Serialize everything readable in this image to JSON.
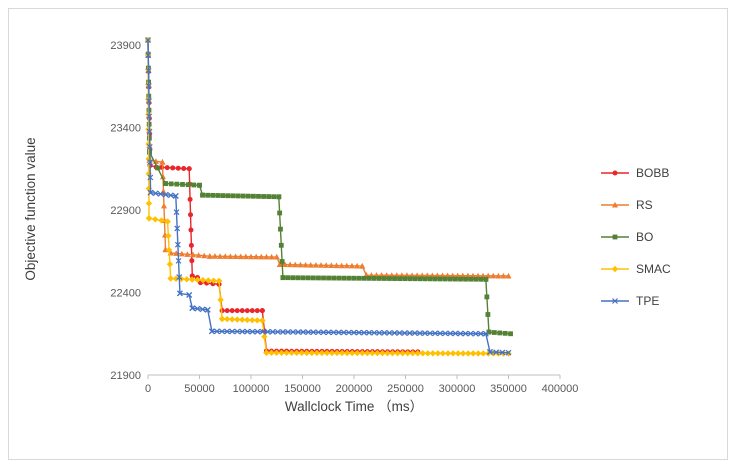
{
  "chart_data": {
    "type": "line",
    "title": "",
    "xlabel": "Wallclock Time （ms）",
    "ylabel": "Objective function value",
    "xlim": [
      0,
      400000
    ],
    "ylim": [
      21900,
      23900
    ],
    "xticks": [
      0,
      50000,
      100000,
      150000,
      200000,
      250000,
      300000,
      350000,
      400000
    ],
    "yticks": [
      21900,
      22400,
      22900,
      23400,
      23900
    ],
    "grid": false,
    "legend_position": "right",
    "axis_color": "#bfbfbf",
    "text_color": "#595959",
    "series": [
      {
        "name": "BOBB",
        "color": "#e8262c",
        "marker": "circle",
        "points": [
          [
            0,
            23930
          ],
          [
            2000,
            23170
          ],
          [
            8000,
            23160
          ],
          [
            40000,
            23150
          ],
          [
            43000,
            22500
          ],
          [
            48000,
            22490
          ],
          [
            51000,
            22460
          ],
          [
            69000,
            22450
          ],
          [
            72000,
            22290
          ],
          [
            111000,
            22290
          ],
          [
            115000,
            22045
          ],
          [
            262000,
            22040
          ]
        ]
      },
      {
        "name": "RS",
        "color": "#ed7d31",
        "marker": "triangle",
        "points": [
          [
            0,
            23930
          ],
          [
            1500,
            23200
          ],
          [
            14000,
            23190
          ],
          [
            17000,
            22660
          ],
          [
            22000,
            22640
          ],
          [
            60000,
            22620
          ],
          [
            125000,
            22615
          ],
          [
            128000,
            22570
          ],
          [
            208000,
            22560
          ],
          [
            212000,
            22505
          ],
          [
            350000,
            22500
          ]
        ]
      },
      {
        "name": "BO",
        "color": "#548235",
        "marker": "square",
        "points": [
          [
            0,
            23930
          ],
          [
            1500,
            23250
          ],
          [
            17000,
            23060
          ],
          [
            50000,
            23050
          ],
          [
            53000,
            22990
          ],
          [
            127000,
            22980
          ],
          [
            131000,
            22490
          ],
          [
            328000,
            22480
          ],
          [
            331000,
            22160
          ],
          [
            352000,
            22150
          ]
        ]
      },
      {
        "name": "SMAC",
        "color": "#ffc000",
        "marker": "diamond",
        "points": [
          [
            0,
            23930
          ],
          [
            1000,
            22850
          ],
          [
            19000,
            22830
          ],
          [
            22000,
            22485
          ],
          [
            69000,
            22470
          ],
          [
            72000,
            22240
          ],
          [
            111000,
            22230
          ],
          [
            115000,
            22035
          ],
          [
            350000,
            22030
          ]
        ]
      },
      {
        "name": "TPE",
        "color": "#4472c4",
        "marker": "x",
        "points": [
          [
            0,
            23930
          ],
          [
            2500,
            23005
          ],
          [
            27000,
            22985
          ],
          [
            31000,
            22395
          ],
          [
            40000,
            22385
          ],
          [
            43000,
            22305
          ],
          [
            58000,
            22295
          ],
          [
            62000,
            22165
          ],
          [
            328000,
            22150
          ],
          [
            332000,
            22040
          ],
          [
            350000,
            22035
          ]
        ]
      }
    ]
  }
}
